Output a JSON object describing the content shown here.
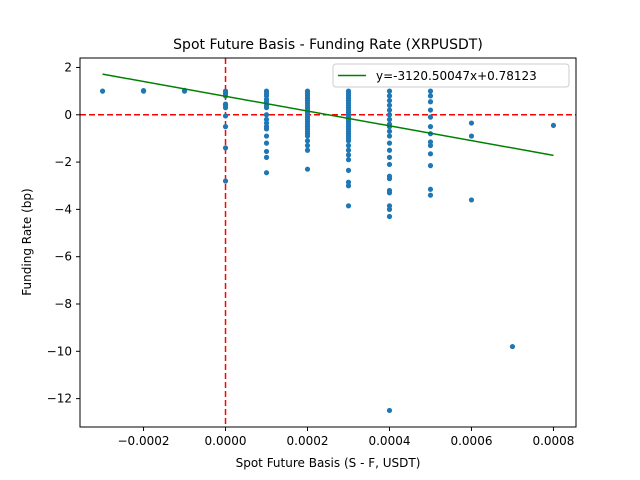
{
  "chart_data": {
    "type": "scatter",
    "title": "Spot Future Basis - Funding Rate (XRPUSDT)",
    "xlabel": "Spot Future Basis (S - F, USDT)",
    "ylabel": "Funding Rate (bp)",
    "xlim": [
      -0.000355,
      0.000855
    ],
    "ylim": [
      -13.2,
      2.4
    ],
    "xticks": [
      -0.0002,
      0.0,
      0.0002,
      0.0004,
      0.0006,
      0.0008
    ],
    "xtick_labels": [
      "−0.0002",
      "0.0000",
      "0.0002",
      "0.0004",
      "0.0006",
      "0.0008"
    ],
    "yticks": [
      2,
      0,
      -2,
      -4,
      -6,
      -8,
      -10,
      -12
    ],
    "ytick_labels": [
      "2",
      "0",
      "−2",
      "−4",
      "−6",
      "−8",
      "−10",
      "−12"
    ],
    "grid": false,
    "legend_position": "top-right",
    "colors": {
      "points": "#1f77b4",
      "fit": "#008000",
      "ref_lines": "#ff0000"
    },
    "reference_lines": {
      "x": 0.0,
      "y": 0.0,
      "style": "dashed"
    },
    "fit_line": {
      "label": "y=-3120.50047x+0.78123",
      "slope": -3120.50047,
      "intercept": 0.78123,
      "x_range": [
        -0.0003,
        0.0008
      ]
    },
    "series": [
      {
        "points": [
          [
            -0.0003,
            1.0
          ],
          [
            -0.0002,
            1.0
          ],
          [
            -0.0002,
            1.02
          ],
          [
            -0.0001,
            1.0
          ],
          [
            -0.0001,
            1.03
          ],
          [
            0.0,
            1.0
          ],
          [
            0.0,
            0.9
          ],
          [
            0.0,
            0.8
          ],
          [
            0.0,
            0.45
          ],
          [
            0.0,
            0.4
          ],
          [
            0.0,
            0.3
          ],
          [
            0.0,
            -0.05
          ],
          [
            0.0,
            -0.5
          ],
          [
            0.0,
            -1.4
          ],
          [
            0.0,
            -2.8
          ],
          [
            0.0001,
            1.0
          ],
          [
            0.0001,
            0.9
          ],
          [
            0.0001,
            0.8
          ],
          [
            0.0001,
            0.65
          ],
          [
            0.0001,
            0.55
          ],
          [
            0.0001,
            0.4
          ],
          [
            0.0001,
            0.3
          ],
          [
            0.0001,
            0.0
          ],
          [
            0.0001,
            -0.2
          ],
          [
            0.0001,
            -0.35
          ],
          [
            0.0001,
            -0.5
          ],
          [
            0.0001,
            -0.6
          ],
          [
            0.0001,
            -0.9
          ],
          [
            0.0001,
            -1.2
          ],
          [
            0.0001,
            -1.55
          ],
          [
            0.0001,
            -1.8
          ],
          [
            0.0001,
            -2.45
          ],
          [
            0.0002,
            1.0
          ],
          [
            0.0002,
            0.9
          ],
          [
            0.0002,
            0.8
          ],
          [
            0.0002,
            0.7
          ],
          [
            0.0002,
            0.6
          ],
          [
            0.0002,
            0.5
          ],
          [
            0.0002,
            0.4
          ],
          [
            0.0002,
            0.3
          ],
          [
            0.0002,
            0.2
          ],
          [
            0.0002,
            0.1
          ],
          [
            0.0002,
            0.0
          ],
          [
            0.0002,
            -0.1
          ],
          [
            0.0002,
            -0.2
          ],
          [
            0.0002,
            -0.3
          ],
          [
            0.0002,
            -0.4
          ],
          [
            0.0002,
            -0.5
          ],
          [
            0.0002,
            -0.6
          ],
          [
            0.0002,
            -0.7
          ],
          [
            0.0002,
            -0.8
          ],
          [
            0.0002,
            -0.9
          ],
          [
            0.0002,
            -1.1
          ],
          [
            0.0002,
            -1.3
          ],
          [
            0.0002,
            -1.5
          ],
          [
            0.0002,
            -2.3
          ],
          [
            0.0003,
            1.0
          ],
          [
            0.0003,
            0.9
          ],
          [
            0.0003,
            0.8
          ],
          [
            0.0003,
            0.7
          ],
          [
            0.0003,
            0.6
          ],
          [
            0.0003,
            0.5
          ],
          [
            0.0003,
            0.4
          ],
          [
            0.0003,
            0.3
          ],
          [
            0.0003,
            0.2
          ],
          [
            0.0003,
            0.1
          ],
          [
            0.0003,
            0.0
          ],
          [
            0.0003,
            -0.1
          ],
          [
            0.0003,
            -0.2
          ],
          [
            0.0003,
            -0.3
          ],
          [
            0.0003,
            -0.4
          ],
          [
            0.0003,
            -0.5
          ],
          [
            0.0003,
            -0.6
          ],
          [
            0.0003,
            -0.7
          ],
          [
            0.0003,
            -0.8
          ],
          [
            0.0003,
            -0.9
          ],
          [
            0.0003,
            -1.0
          ],
          [
            0.0003,
            -1.1
          ],
          [
            0.0003,
            -1.3
          ],
          [
            0.0003,
            -1.5
          ],
          [
            0.0003,
            -1.7
          ],
          [
            0.0003,
            -1.9
          ],
          [
            0.0003,
            -2.35
          ],
          [
            0.0003,
            -2.85
          ],
          [
            0.0003,
            -3.0
          ],
          [
            0.0003,
            -3.85
          ],
          [
            0.0004,
            1.0
          ],
          [
            0.0004,
            0.8
          ],
          [
            0.0004,
            0.6
          ],
          [
            0.0004,
            0.4
          ],
          [
            0.0004,
            0.2
          ],
          [
            0.0004,
            0.0
          ],
          [
            0.0004,
            -0.2
          ],
          [
            0.0004,
            -0.4
          ],
          [
            0.0004,
            -0.5
          ],
          [
            0.0004,
            -0.7
          ],
          [
            0.0004,
            -0.9
          ],
          [
            0.0004,
            -1.2
          ],
          [
            0.0004,
            -1.5
          ],
          [
            0.0004,
            -1.8
          ],
          [
            0.0004,
            -2.1
          ],
          [
            0.0004,
            -2.6
          ],
          [
            0.0004,
            -2.7
          ],
          [
            0.0004,
            -3.2
          ],
          [
            0.0004,
            -3.3
          ],
          [
            0.0004,
            -3.85
          ],
          [
            0.0004,
            -4.0
          ],
          [
            0.0004,
            -4.3
          ],
          [
            0.0004,
            -12.5
          ],
          [
            0.0005,
            1.0
          ],
          [
            0.0005,
            0.8
          ],
          [
            0.0005,
            0.55
          ],
          [
            0.0005,
            0.2
          ],
          [
            0.0005,
            -0.1
          ],
          [
            0.0005,
            -0.5
          ],
          [
            0.0005,
            -0.8
          ],
          [
            0.0005,
            -1.15
          ],
          [
            0.0005,
            -1.3
          ],
          [
            0.0005,
            -1.65
          ],
          [
            0.0005,
            -2.15
          ],
          [
            0.0005,
            -3.15
          ],
          [
            0.0005,
            -3.4
          ],
          [
            0.0006,
            -0.35
          ],
          [
            0.0006,
            -0.9
          ],
          [
            0.0006,
            -3.6
          ],
          [
            0.0007,
            -9.8
          ],
          [
            0.0008,
            -0.45
          ]
        ]
      }
    ]
  }
}
